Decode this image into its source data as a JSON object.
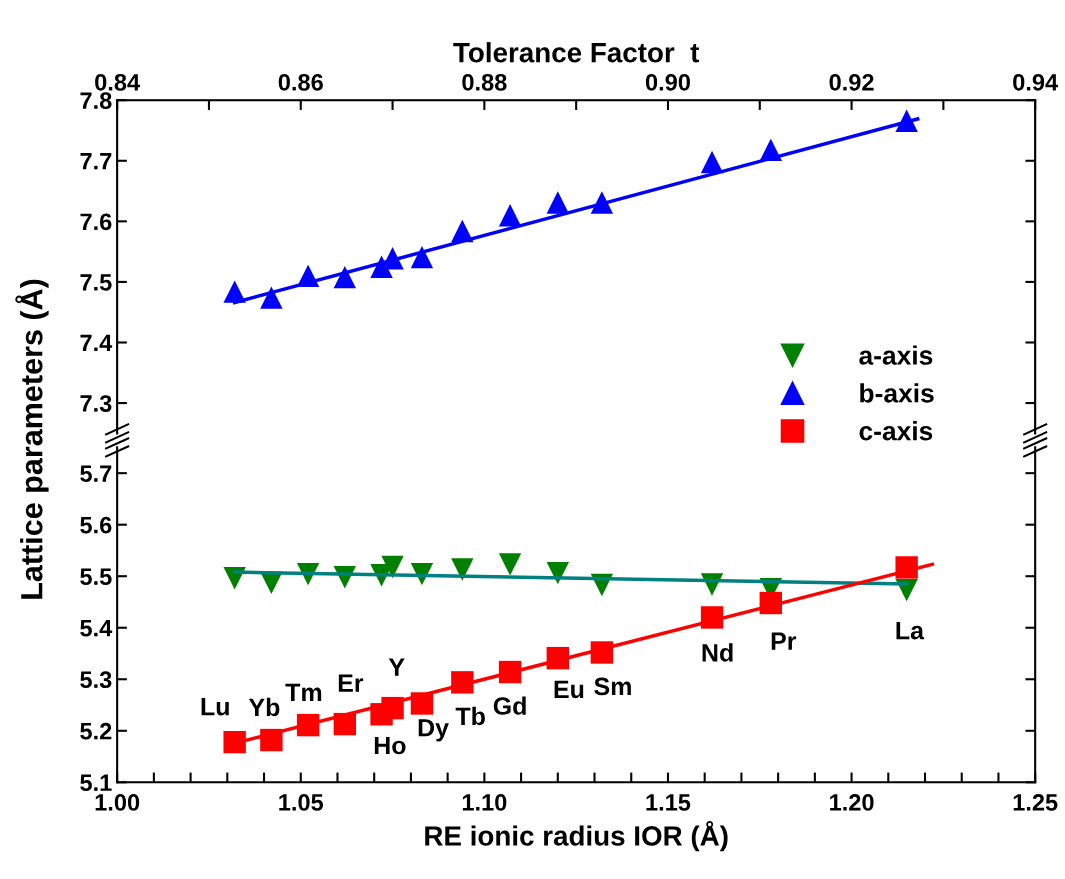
{
  "chart_data": [
    {
      "type": "scatter",
      "x2label": "Tolerance Factor  t",
      "xlim": [
        1.0,
        1.25
      ],
      "ylim": [
        7.25,
        7.8
      ],
      "tick_labels": "y",
      "yticks": [
        {
          "value": 7.3,
          "label": "7.3"
        },
        {
          "value": 7.4,
          "label": "7.4"
        },
        {
          "value": 7.5,
          "label": "7.5"
        },
        {
          "value": 7.6,
          "label": "7.6"
        },
        {
          "value": 7.7,
          "label": "7.7"
        },
        {
          "value": 7.8,
          "label": "7.8"
        }
      ],
      "x2lim": [
        0.84,
        0.94
      ],
      "x2ticks": [
        0.84,
        {
          "value": 0.85,
          "label": null
        },
        0.86,
        {
          "value": 0.87,
          "label": null
        },
        0.88,
        {
          "value": 0.89,
          "label": null
        },
        {
          "value": 0.9,
          "label": "0.90"
        },
        {
          "value": 0.91,
          "label": null
        },
        0.92,
        {
          "value": 0.93,
          "label": null
        },
        0.94
      ],
      "legend": "right",
      "series": [
        {
          "name": "b-axis",
          "color": "#0000ff",
          "marker": "triangle",
          "x": [
            1.032,
            1.042,
            1.052,
            1.062,
            1.072,
            1.075,
            1.083,
            1.094,
            1.107,
            1.12,
            1.132,
            1.162,
            1.178,
            1.215
          ],
          "values": [
            7.484,
            7.474,
            7.51,
            7.508,
            7.525,
            7.539,
            7.541,
            7.584,
            7.61,
            7.631,
            7.631,
            7.698,
            7.718,
            7.766
          ]
        },
        {
          "type": "line",
          "color": "#0000ff",
          "marker": "none",
          "x": [
            1.032,
            1.218
          ],
          "values": [
            7.466,
            7.769
          ]
        }
      ]
    },
    {
      "type": "scatter",
      "xlabel": "RE ionic radius IOR (Å)",
      "ylabel": "Lattice parameters (Å)",
      "xlim": [
        1.0,
        1.25
      ],
      "ylim": [
        5.1,
        5.75
      ],
      "xticks": [
        {
          "value": 1.0,
          "label": "1.00"
        },
        {
          "value": 1.01,
          "label": null
        },
        {
          "value": 1.02,
          "label": null
        },
        {
          "value": 1.03,
          "label": null
        },
        {
          "value": 1.04,
          "label": null
        },
        1.05,
        {
          "value": 1.06,
          "label": null
        },
        {
          "value": 1.07,
          "label": null
        },
        {
          "value": 1.08,
          "label": null
        },
        {
          "value": 1.09,
          "label": null
        },
        {
          "value": 1.1,
          "label": "1.10"
        },
        {
          "value": 1.11,
          "label": null
        },
        {
          "value": 1.12,
          "label": null
        },
        {
          "value": 1.13,
          "label": null
        },
        {
          "value": 1.14,
          "label": null
        },
        1.15,
        {
          "value": 1.16,
          "label": null
        },
        {
          "value": 1.17,
          "label": null
        },
        {
          "value": 1.18,
          "label": null
        },
        {
          "value": 1.19,
          "label": null
        },
        {
          "value": 1.2,
          "label": "1.20"
        },
        {
          "value": 1.21,
          "label": null
        },
        {
          "value": 1.22,
          "label": null
        },
        {
          "value": 1.23,
          "label": null
        },
        {
          "value": 1.24,
          "label": null
        },
        1.25
      ],
      "yticks": [
        5.1,
        5.2,
        5.3,
        5.4,
        5.5,
        5.6,
        5.7
      ],
      "legend": "right",
      "series": [
        {
          "name": "a-axis",
          "color": "#008000",
          "marker": "triangle_down",
          "x": [
            1.032,
            1.042,
            1.052,
            1.062,
            1.072,
            1.075,
            1.083,
            1.094,
            1.107,
            1.12,
            1.132,
            1.162,
            1.178,
            1.215
          ],
          "values": [
            5.496,
            5.487,
            5.504,
            5.498,
            5.502,
            5.518,
            5.504,
            5.513,
            5.523,
            5.506,
            5.483,
            5.484,
            5.475,
            5.473
          ]
        },
        {
          "name": "c-axis",
          "color": "#ff0000",
          "marker": "square",
          "x": [
            1.032,
            1.042,
            1.052,
            1.062,
            1.072,
            1.075,
            1.083,
            1.094,
            1.107,
            1.12,
            1.132,
            1.162,
            1.178,
            1.215
          ],
          "values": [
            5.178,
            5.182,
            5.211,
            5.213,
            5.232,
            5.244,
            5.253,
            5.294,
            5.314,
            5.341,
            5.352,
            5.42,
            5.448,
            5.517
          ]
        },
        {
          "type": "line",
          "color": "#008080",
          "marker": "none",
          "x": [
            1.032,
            1.215
          ],
          "values": [
            5.508,
            5.485
          ]
        },
        {
          "type": "line",
          "color": "#ff0000",
          "marker": "none",
          "x": [
            1.032,
            1.222
          ],
          "values": [
            5.176,
            5.523
          ]
        }
      ],
      "annotations": [
        {
          "text": "Lu",
          "x": 1.032,
          "y": 5.178
        },
        {
          "text": "Yb",
          "x": 1.042,
          "y": 5.182
        },
        {
          "text": "Tm",
          "x": 1.052,
          "y": 5.211
        },
        {
          "text": "Er",
          "x": 1.062,
          "y": 5.213
        },
        {
          "text": "Ho",
          "x": 1.072,
          "y": 5.232
        },
        {
          "text": "Y",
          "x": 1.075,
          "y": 5.244
        },
        {
          "text": "Dy",
          "x": 1.083,
          "y": 5.253
        },
        {
          "text": "Tb",
          "x": 1.094,
          "y": 5.294
        },
        {
          "text": "Gd",
          "x": 1.107,
          "y": 5.314
        },
        {
          "text": "Eu",
          "x": 1.12,
          "y": 5.341
        },
        {
          "text": "Sm",
          "x": 1.132,
          "y": 5.352
        },
        {
          "text": "Nd",
          "x": 1.162,
          "y": 5.42
        },
        {
          "text": "Pr",
          "x": 1.178,
          "y": 5.448
        },
        {
          "text": "La",
          "x": 1.215,
          "y": 5.517
        }
      ]
    }
  ]
}
